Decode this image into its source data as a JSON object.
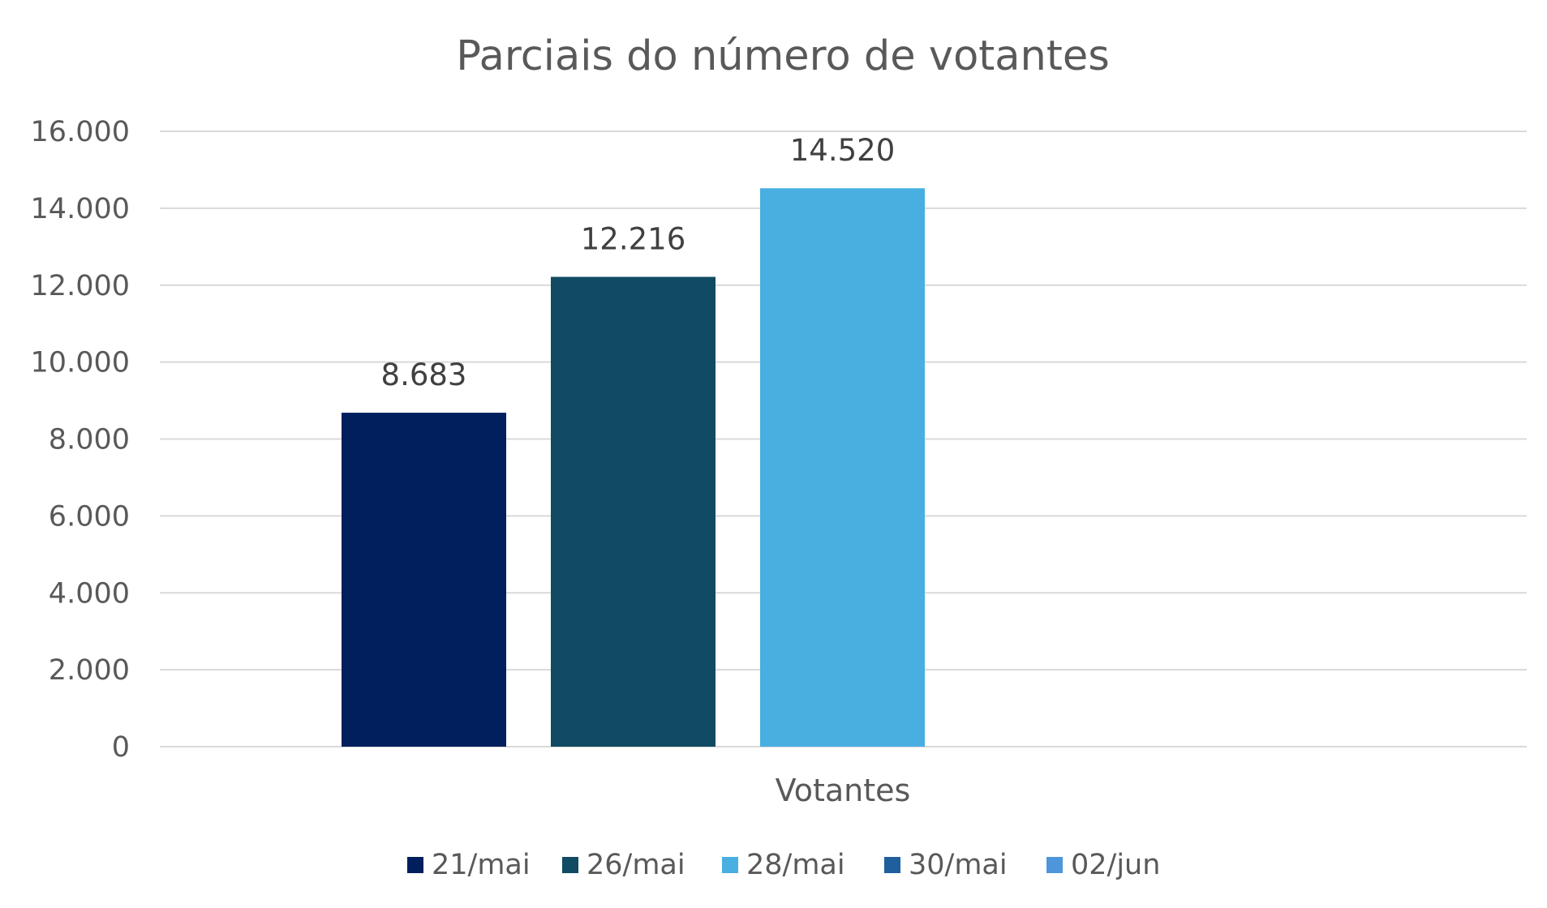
{
  "chart_data": {
    "type": "bar",
    "title": "Parciais do número de votantes",
    "categories": [
      "Votantes"
    ],
    "series": [
      {
        "name": "21/mai",
        "values": [
          8683
        ],
        "label": "8.683",
        "color": "#001f5c"
      },
      {
        "name": "26/mai",
        "values": [
          12216
        ],
        "label": "12.216",
        "color": "#114a63"
      },
      {
        "name": "28/mai",
        "values": [
          14520
        ],
        "label": "14.520",
        "color": "#48afe0"
      },
      {
        "name": "30/mai",
        "values": [
          null
        ],
        "label": "",
        "color": "#1f5f9e"
      },
      {
        "name": "02/jun",
        "values": [
          null
        ],
        "label": "",
        "color": "#4d96dc"
      }
    ],
    "ylim": [
      0,
      16000
    ],
    "yticks": [
      {
        "value": 0,
        "label": "0"
      },
      {
        "value": 2000,
        "label": "2.000"
      },
      {
        "value": 4000,
        "label": "4.000"
      },
      {
        "value": 6000,
        "label": "6.000"
      },
      {
        "value": 8000,
        "label": "8.000"
      },
      {
        "value": 10000,
        "label": "10.000"
      },
      {
        "value": 12000,
        "label": "12.000"
      },
      {
        "value": 14000,
        "label": "14.000"
      },
      {
        "value": 16000,
        "label": "16.000"
      }
    ],
    "xlabel": "",
    "ylabel": "",
    "grid": true,
    "legend": "bottom"
  }
}
